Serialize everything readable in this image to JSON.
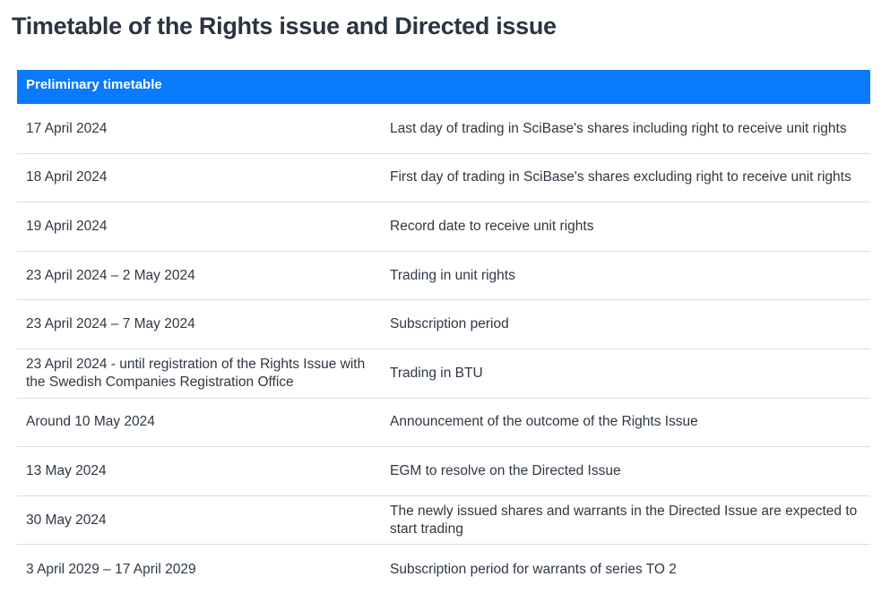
{
  "page": {
    "title": "Timetable of the Rights issue and Directed issue"
  },
  "timetable": {
    "header": "Preliminary timetable",
    "rows": [
      {
        "date": "17 April 2024",
        "event": "Last day of trading in SciBase's shares including right to receive unit rights"
      },
      {
        "date": "18 April 2024",
        "event": "First day of trading in SciBase's shares excluding right to receive unit rights"
      },
      {
        "date": "19 April 2024",
        "event": "Record date to receive unit rights"
      },
      {
        "date": "23 April 2024 – 2 May 2024",
        "event": "Trading in unit rights"
      },
      {
        "date": "23 April 2024 – 7 May 2024",
        "event": "Subscription period"
      },
      {
        "date": "23 April 2024 - until registration of the Rights Issue with the Swedish Companies Registration Office",
        "event": "Trading in BTU"
      },
      {
        "date": "Around 10 May 2024",
        "event": "Announcement of the outcome of the Rights Issue"
      },
      {
        "date": "13 May 2024",
        "event": "EGM to resolve on the Directed Issue"
      },
      {
        "date": "30 May 2024",
        "event": "The newly issued shares and warrants in the Directed Issue are expected to start trading"
      },
      {
        "date": "3 April 2029 – 17 April 2029",
        "event": "Subscription period for warrants of series TO 2"
      }
    ]
  },
  "colors": {
    "header_background": "#0a7aff",
    "header_text": "#ffffff",
    "row_divider": "#d9dde2",
    "title_text": "#2b3440"
  }
}
